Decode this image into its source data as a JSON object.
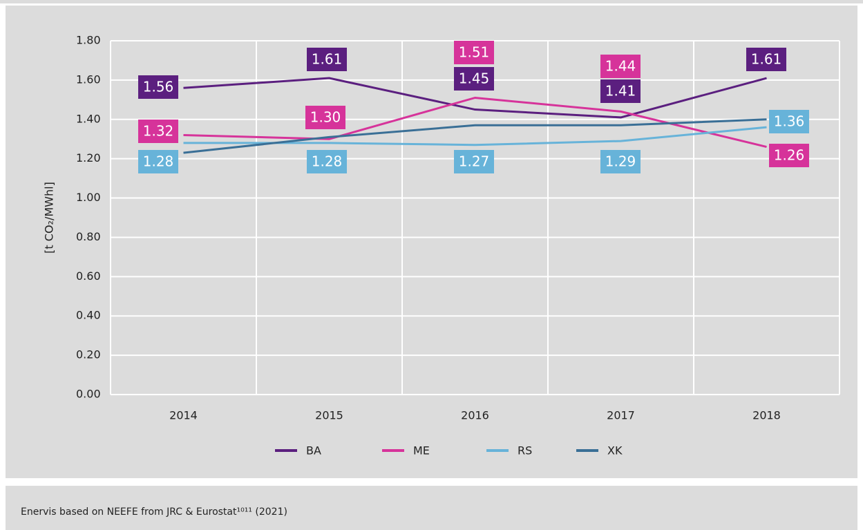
{
  "chart_data": {
    "type": "line",
    "y_label": "[t CO₂/MWhl]",
    "categories": [
      "2014",
      "2015",
      "2016",
      "2017",
      "2018"
    ],
    "series": [
      {
        "name": "BA",
        "color": "#5b1f7f",
        "values": [
          1.56,
          1.61,
          1.45,
          1.41,
          1.61
        ],
        "value_labels": [
          "1.56",
          "1.61",
          "1.45",
          "1.41",
          "1.61"
        ]
      },
      {
        "name": "ME",
        "color": "#d6339a",
        "values": [
          1.32,
          1.3,
          1.51,
          1.44,
          1.26
        ],
        "value_labels": [
          "1.32",
          "1.30",
          "1.51",
          "1.44",
          "1.26"
        ]
      },
      {
        "name": "RS",
        "color": "#67b3d9",
        "values": [
          1.28,
          1.28,
          1.27,
          1.29,
          1.36
        ],
        "value_labels": [
          "1.28",
          "1.28",
          "1.27",
          "1.29",
          "1.36"
        ]
      },
      {
        "name": "XK",
        "color": "#3a6f96",
        "values": [
          1.23,
          1.31,
          1.37,
          1.37,
          1.4
        ]
      }
    ],
    "ylim": [
      0,
      1.8
    ],
    "yticks": [
      {
        "value": 0,
        "label": "0.00"
      },
      {
        "value": 0.2,
        "label": "0.20"
      },
      {
        "value": 0.4,
        "label": "0.40"
      },
      {
        "value": 0.6,
        "label": "0.60"
      },
      {
        "value": 0.8,
        "label": "0.80"
      },
      {
        "value": 1.0,
        "label": "1.00"
      },
      {
        "value": 1.2,
        "label": "1.20"
      },
      {
        "value": 1.4,
        "label": "1.40"
      },
      {
        "value": 1.6,
        "label": "1.60"
      },
      {
        "value": 1.8,
        "label": "1.80"
      }
    ],
    "grid": true,
    "legend": "bottom"
  },
  "source": "Enervis based on NEEFE from JRC & Eurostat¹⁰¹¹ (2021)"
}
